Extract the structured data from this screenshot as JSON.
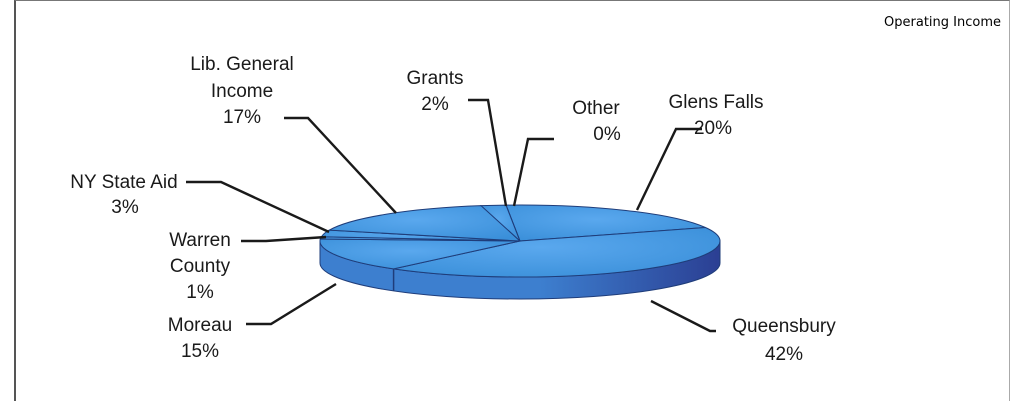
{
  "chart_data": {
    "type": "pie",
    "title": "Operating Income",
    "three_d": true,
    "colors": {
      "top": "#3a8fd9",
      "top_edge": "#5aa8ee",
      "side_light": "#3d7fcf",
      "side_dark": "#2b3f93",
      "outline": "#1f3d7a"
    },
    "slices": [
      {
        "name": "Glens Falls",
        "value": 20,
        "pct": "20%"
      },
      {
        "name": "Queensbury",
        "value": 42,
        "pct": "42%"
      },
      {
        "name": "Moreau",
        "value": 15,
        "pct": "15%"
      },
      {
        "name": "Warren County",
        "value": 1,
        "pct": "1%"
      },
      {
        "name": "NY State Aid",
        "value": 3,
        "pct": "3%"
      },
      {
        "name": "Lib. General Income",
        "value": 17,
        "pct": "17%"
      },
      {
        "name": "Grants",
        "value": 2,
        "pct": "2%"
      },
      {
        "name": "Other",
        "value": 0,
        "pct": "0%"
      }
    ],
    "labels": {
      "glens_falls": [
        "Glens Falls",
        "20%"
      ],
      "queensbury": [
        "Queensbury",
        "42%"
      ],
      "moreau": [
        "Moreau",
        "15%"
      ],
      "warren": [
        "Warren",
        "County",
        "1%"
      ],
      "nystate": [
        "NY State Aid",
        "3%"
      ],
      "lib": [
        "Lib. General",
        "Income",
        "17%"
      ],
      "grants": [
        "Grants",
        "2%"
      ],
      "other": [
        "Other",
        "0%"
      ]
    }
  }
}
